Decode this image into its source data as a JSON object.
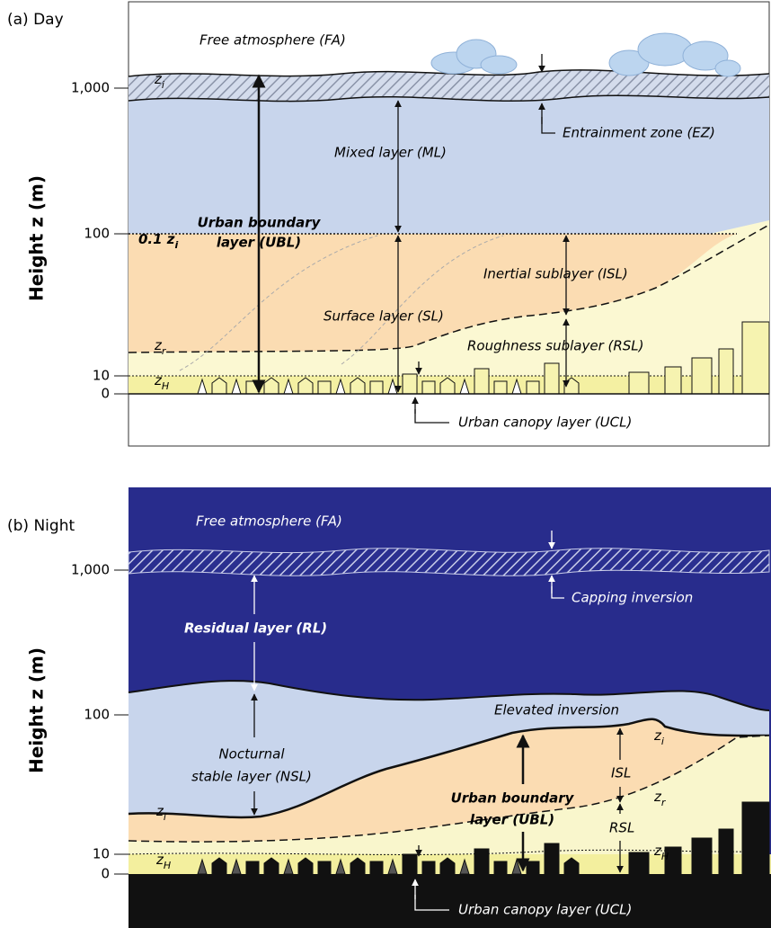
{
  "panel_a": {
    "label": "(a) Day",
    "axis_title": "Height z (m)",
    "ticks": [
      "1,000",
      "100",
      "10",
      "0"
    ],
    "free_atmosphere": "Free atmosphere (FA)",
    "zi": {
      "base": "z",
      "sub": "i"
    },
    "mixed_layer": "Mixed layer (ML)",
    "entrainment_zone": "Entrainment zone (EZ)",
    "ubl": [
      "Urban boundary",
      "layer (UBL)"
    ],
    "point_one_zi": {
      "base": "0.1 z",
      "sub": "i"
    },
    "isl": "Inertial sublayer (ISL)",
    "surface_layer": "Surface layer (SL)",
    "zr": {
      "base": "z",
      "sub": "r"
    },
    "rsl": "Roughness sublayer (RSL)",
    "zh": {
      "base": "z",
      "sub": "H"
    },
    "ucl": "Urban canopy layer (UCL)"
  },
  "panel_b": {
    "label": "(b) Night",
    "axis_title": "Height z (m)",
    "ticks": [
      "1,000",
      "100",
      "10",
      "0"
    ],
    "free_atmosphere": "Free atmosphere (FA)",
    "capping_inversion": "Capping inversion",
    "residual_layer": "Residual layer (RL)",
    "elevated_inversion": "Elevated inversion",
    "nsl": [
      "Nocturnal",
      "stable layer (NSL)"
    ],
    "zi_right": {
      "base": "z",
      "sub": "i"
    },
    "zi_left": {
      "base": "z",
      "sub": "i"
    },
    "isl": "ISL",
    "zr": {
      "base": "z",
      "sub": "r"
    },
    "ubl": [
      "Urban boundary",
      "layer (UBL)"
    ],
    "rsl": "RSL",
    "zh_left": {
      "base": "z",
      "sub": "H"
    },
    "zh_right": {
      "base": "z",
      "sub": "H"
    },
    "ucl": "Urban canopy layer (UCL)"
  }
}
